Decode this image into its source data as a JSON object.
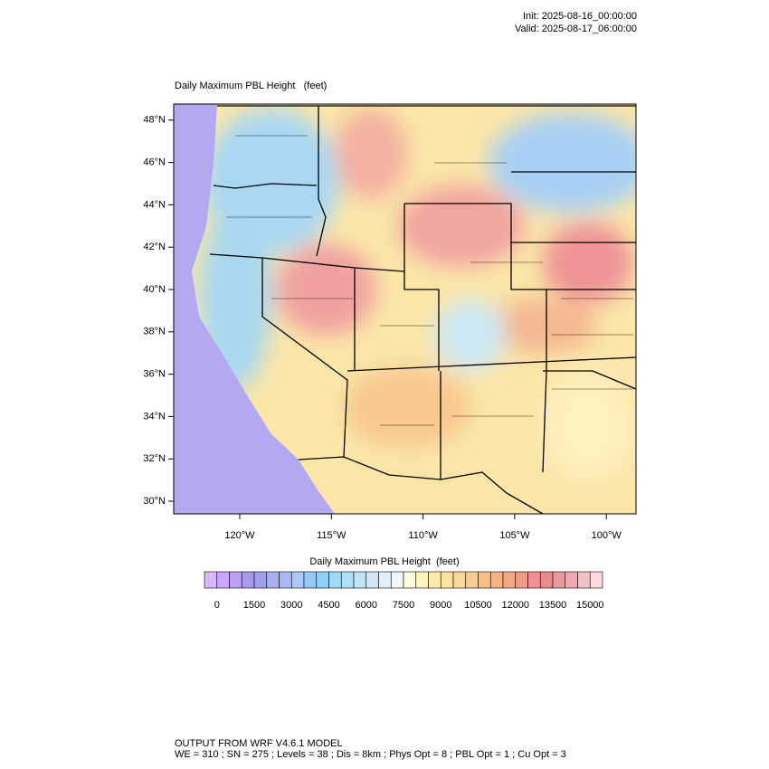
{
  "header": {
    "init": "Init: 2025-08-16_00:00:00",
    "valid": "Valid: 2025-08-17_06:00:00"
  },
  "map": {
    "title": "Daily Maximum PBL Height   (feet)",
    "lat_labels": [
      "30°N",
      "32°N",
      "34°N",
      "36°N",
      "38°N",
      "40°N",
      "42°N",
      "44°N",
      "46°N",
      "48°N"
    ],
    "lon_labels": [
      "120°W",
      "115°W",
      "110°W",
      "105°W",
      "100°W"
    ]
  },
  "colorbar": {
    "title": "Daily Maximum PBL Height  (feet)",
    "labels": [
      "0",
      "1500",
      "3000",
      "4500",
      "6000",
      "7500",
      "9000",
      "10500",
      "12000",
      "13500",
      "15000"
    ],
    "colors": [
      "#d8b8f8",
      "#c8a8f8",
      "#b8a0f4",
      "#a898f0",
      "#a0a0f0",
      "#a8b0f0",
      "#a8b8f0",
      "#b0c8f4",
      "#98c8f8",
      "#90d0f8",
      "#a0d8f8",
      "#b0e0f8",
      "#c0e4f4",
      "#d0e8f4",
      "#e0f0f8",
      "#f0f8f8",
      "#fffbe0",
      "#fff4c0",
      "#fcecb0",
      "#fce4a0",
      "#fad898",
      "#f8cc90",
      "#f8c088",
      "#f4b484",
      "#f4a884",
      "#f09c88",
      "#f09090",
      "#ec8890",
      "#ec98a0",
      "#f0a8b0",
      "#f4c0c8",
      "#fcdce0"
    ]
  },
  "footer": {
    "line1": "OUTPUT FROM WRF V4.6.1 MODEL",
    "line2": "WE = 310 ; SN = 275 ; Levels = 38 ; Dis = 8km ; Phys Opt = 8 ; PBL Opt = 1 ; Cu Opt = 3"
  }
}
